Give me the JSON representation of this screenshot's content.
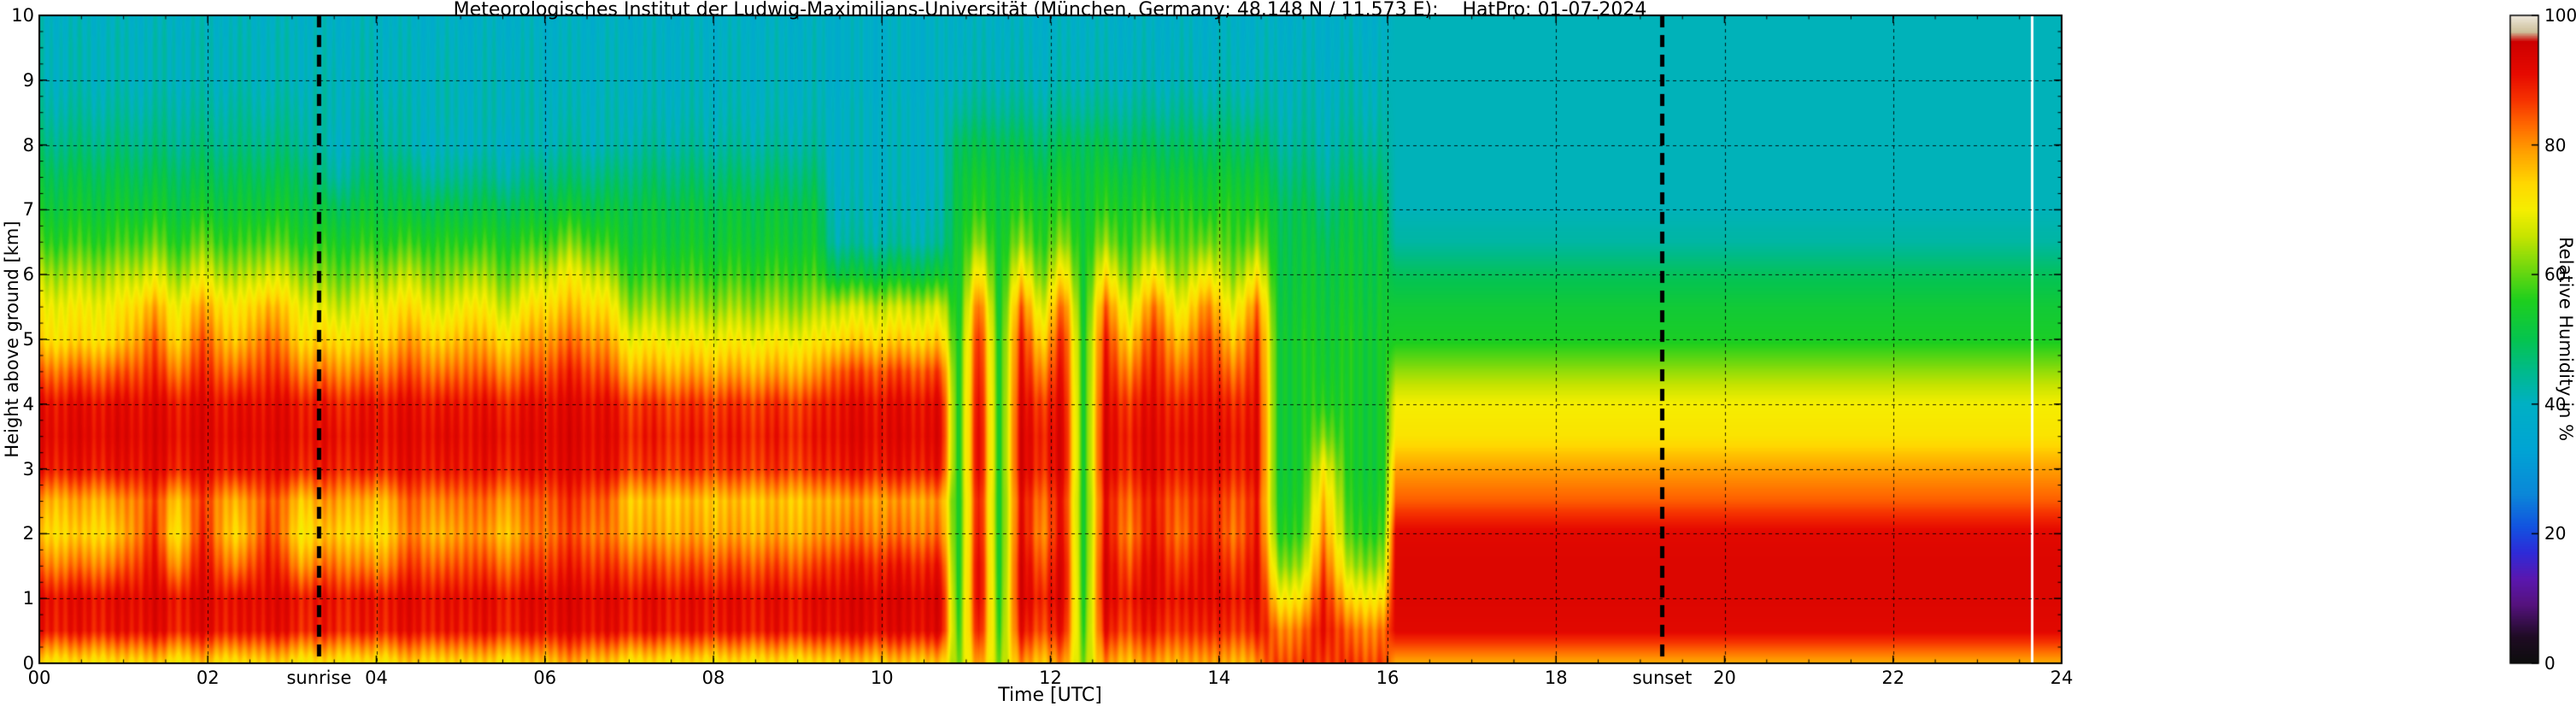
{
  "chart_data": {
    "type": "heatmap",
    "title": "Meteorologisches Institut der Ludwig-Maximilians-Universität (München, Germany; 48.148 N / 11.573 E):    HatPro: 01-07-2024",
    "xlabel": "Time [UTC]",
    "ylabel": "Height above ground [km]",
    "colorbar_label": "Relative Humidity in %",
    "x_range": [
      0,
      24
    ],
    "y_range": [
      0,
      10
    ],
    "z_range": [
      0,
      100
    ],
    "grid": true,
    "legend_position": "right-colorbar",
    "x_tick_values": [
      0,
      2,
      4,
      6,
      8,
      10,
      12,
      14,
      16,
      18,
      20,
      22,
      24
    ],
    "x_tick_labels": [
      "00",
      "02",
      "04",
      "06",
      "08",
      "10",
      "12",
      "14",
      "16",
      "18",
      "20",
      "22",
      "24"
    ],
    "y_tick_values": [
      0,
      1,
      2,
      3,
      4,
      5,
      6,
      7,
      8,
      9,
      10
    ],
    "y_tick_labels": [
      "0",
      "1",
      "2",
      "3",
      "4",
      "5",
      "6",
      "7",
      "8",
      "9",
      "10"
    ],
    "colorbar_tick_values": [
      0,
      20,
      40,
      60,
      80,
      100
    ],
    "colorbar_tick_labels": [
      "0",
      "20",
      "40",
      "60",
      "80",
      "100"
    ],
    "annotations": {
      "sunrise": {
        "t": 3.32,
        "label": "sunrise"
      },
      "sunset": {
        "t": 19.26,
        "label": "sunset"
      },
      "data_gap_t": 23.65
    },
    "stripe_texture": {
      "t_max": 16,
      "amp": 3
    },
    "colormap_stops": [
      [
        0,
        "#0d0d0d"
      ],
      [
        4,
        "#1f0b24"
      ],
      [
        9,
        "#55127e"
      ],
      [
        13,
        "#5a17b0"
      ],
      [
        17,
        "#2e2bd8"
      ],
      [
        21,
        "#1253e0"
      ],
      [
        26,
        "#0b87d8"
      ],
      [
        33,
        "#00a4d4"
      ],
      [
        40,
        "#00b0c4"
      ],
      [
        45,
        "#00ba8c"
      ],
      [
        50,
        "#05c44f"
      ],
      [
        56,
        "#1ecf1e"
      ],
      [
        61,
        "#72d80e"
      ],
      [
        66,
        "#c8e400"
      ],
      [
        70,
        "#f5ee00"
      ],
      [
        74,
        "#ffd800"
      ],
      [
        79,
        "#ffa000"
      ],
      [
        83,
        "#ff6a00"
      ],
      [
        87,
        "#f63200"
      ],
      [
        91,
        "#e60a00"
      ],
      [
        96,
        "#cd0000"
      ],
      [
        97.5,
        "#cdbf9a"
      ],
      [
        100,
        "#efe9dd"
      ]
    ],
    "height_levels_km": [
      0,
      0.5,
      1,
      1.5,
      2,
      2.5,
      3,
      3.5,
      4,
      4.5,
      5,
      5.5,
      6,
      6.5,
      7,
      7.5,
      8,
      8.5,
      9,
      9.5,
      10
    ],
    "profiles": {
      "night_base": [
        72,
        90,
        91,
        82,
        74,
        78,
        90,
        92,
        91,
        83,
        73,
        70,
        64,
        57,
        53,
        50,
        46,
        43,
        41,
        41,
        40
      ],
      "night_streak": [
        75,
        92,
        93,
        91,
        88,
        86,
        92,
        93,
        92,
        88,
        84,
        78,
        68,
        60,
        54,
        50,
        46,
        43,
        41,
        41,
        40
      ],
      "night_calm": [
        71,
        89,
        90,
        80,
        72,
        76,
        89,
        91,
        90,
        82,
        74,
        70,
        63,
        56,
        52,
        49,
        45,
        43,
        41,
        41,
        40
      ],
      "morn_var_a": [
        72,
        89,
        90,
        83,
        76,
        80,
        89,
        91,
        89,
        81,
        73,
        66,
        60,
        55,
        50,
        43,
        40,
        41,
        41,
        40,
        39
      ],
      "morn_var_b": [
        75,
        91,
        92,
        87,
        82,
        84,
        91,
        92,
        91,
        85,
        79,
        73,
        65,
        57,
        51,
        46,
        41,
        41,
        40,
        40,
        39
      ],
      "morn_tall": [
        78,
        92,
        93,
        89,
        85,
        87,
        92,
        93,
        92,
        88,
        82,
        76,
        70,
        61,
        53,
        47,
        43,
        41,
        40,
        40,
        39
      ],
      "fore_calm": [
        72,
        90,
        91,
        85,
        78,
        76,
        87,
        89,
        87,
        78,
        70,
        63,
        57,
        53,
        51,
        47,
        43,
        41,
        40,
        40,
        39
      ],
      "dry_top": [
        75,
        92,
        93,
        89,
        82,
        79,
        90,
        92,
        91,
        85,
        74,
        66,
        52,
        43,
        41,
        40,
        40,
        40,
        39,
        39,
        39
      ],
      "green_col": [
        62,
        58,
        56,
        55,
        55,
        55,
        55,
        55,
        55,
        55,
        55,
        54,
        54,
        54,
        53,
        52,
        50,
        45,
        42,
        41,
        40
      ],
      "red_col": [
        80,
        90,
        93,
        93,
        91,
        90,
        93,
        93,
        92,
        90,
        88,
        83,
        72,
        62,
        56,
        53,
        49,
        44,
        41,
        40,
        39
      ],
      "mix_col": [
        76,
        86,
        89,
        85,
        81,
        83,
        88,
        89,
        87,
        81,
        74,
        67,
        61,
        57,
        55,
        52,
        48,
        44,
        41,
        40,
        39
      ],
      "green_deep": [
        86,
        82,
        72,
        63,
        57,
        55,
        54,
        54,
        54,
        54,
        54,
        53,
        52,
        51,
        50,
        47,
        44,
        42,
        41,
        40,
        39
      ],
      "orange_col": [
        88,
        92,
        91,
        87,
        82,
        78,
        72,
        63,
        57,
        55,
        54,
        53,
        52,
        50,
        47,
        44,
        42,
        41,
        40,
        39,
        39
      ],
      "day_bands": [
        78,
        92,
        93,
        93,
        92,
        84,
        79,
        72,
        70,
        63,
        55,
        53,
        49,
        43,
        41,
        41,
        41,
        41,
        41,
        41,
        41
      ]
    },
    "timeline": [
      {
        "t": 0.0,
        "p": "night_base"
      },
      {
        "t": 0.9,
        "p": "night_base"
      },
      {
        "t": 1.35,
        "p": "night_streak"
      },
      {
        "t": 1.6,
        "p": "night_calm"
      },
      {
        "t": 1.95,
        "p": "night_streak"
      },
      {
        "t": 2.35,
        "p": "night_calm"
      },
      {
        "t": 2.7,
        "p": "night_streak"
      },
      {
        "t": 3.1,
        "p": "night_calm"
      },
      {
        "t": 3.5,
        "p": "morn_var_a"
      },
      {
        "t": 4.0,
        "p": "night_calm"
      },
      {
        "t": 4.45,
        "p": "morn_var_b"
      },
      {
        "t": 4.8,
        "p": "morn_var_a"
      },
      {
        "t": 5.1,
        "p": "morn_var_b"
      },
      {
        "t": 5.5,
        "p": "morn_var_a"
      },
      {
        "t": 5.9,
        "p": "morn_var_b"
      },
      {
        "t": 6.3,
        "p": "morn_tall"
      },
      {
        "t": 6.7,
        "p": "morn_var_b"
      },
      {
        "t": 7.0,
        "p": "fore_calm"
      },
      {
        "t": 8.0,
        "p": "fore_calm"
      },
      {
        "t": 9.2,
        "p": "fore_calm"
      },
      {
        "t": 9.45,
        "p": "dry_top"
      },
      {
        "t": 10.3,
        "p": "dry_top"
      },
      {
        "t": 10.7,
        "p": "dry_top"
      },
      {
        "t": 10.9,
        "p": "green_col"
      },
      {
        "t": 11.15,
        "p": "red_col"
      },
      {
        "t": 11.4,
        "p": "green_col"
      },
      {
        "t": 11.65,
        "p": "red_col"
      },
      {
        "t": 11.9,
        "p": "mix_col"
      },
      {
        "t": 12.15,
        "p": "red_col"
      },
      {
        "t": 12.4,
        "p": "green_col"
      },
      {
        "t": 12.65,
        "p": "red_col"
      },
      {
        "t": 12.95,
        "p": "mix_col"
      },
      {
        "t": 13.25,
        "p": "red_col"
      },
      {
        "t": 13.55,
        "p": "mix_col"
      },
      {
        "t": 13.85,
        "p": "red_col"
      },
      {
        "t": 14.15,
        "p": "mix_col"
      },
      {
        "t": 14.45,
        "p": "red_col"
      },
      {
        "t": 14.7,
        "p": "green_deep"
      },
      {
        "t": 15.0,
        "p": "green_deep"
      },
      {
        "t": 15.25,
        "p": "orange_col"
      },
      {
        "t": 15.55,
        "p": "green_deep"
      },
      {
        "t": 15.95,
        "p": "green_deep"
      },
      {
        "t": 16.1,
        "p": "day_bands"
      },
      {
        "t": 24.0,
        "p": "day_bands"
      }
    ]
  }
}
